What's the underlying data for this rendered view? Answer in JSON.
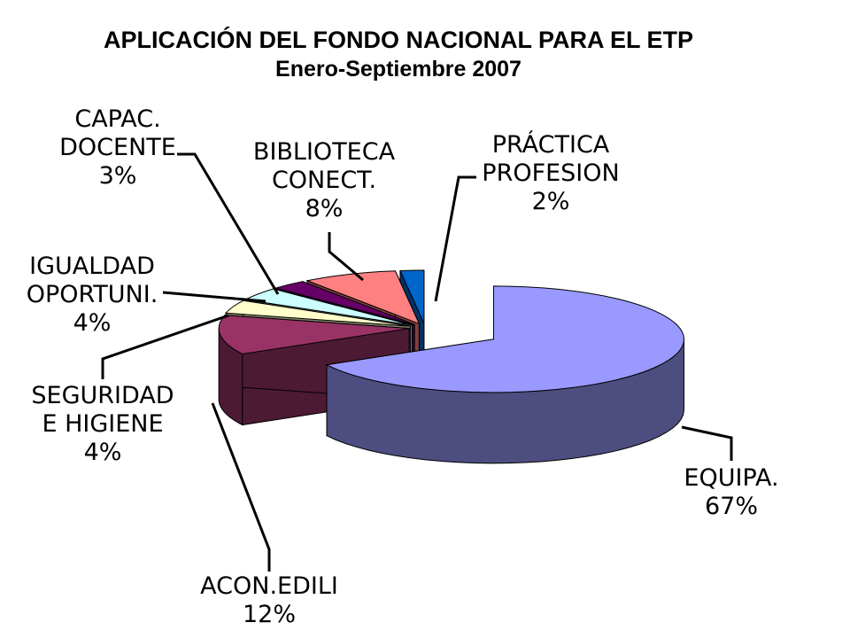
{
  "chart_data": {
    "type": "pie",
    "title": "APLICACIÓN DEL FONDO NACIONAL PARA EL ETP",
    "subtitle": "Enero-Septiembre 2007",
    "slices": [
      {
        "key": "equipa",
        "label_lines": [
          "EQUIPA."
        ],
        "pct_label": "67%",
        "value": 67,
        "color": "#9999ff"
      },
      {
        "key": "acon",
        "label_lines": [
          "ACON.EDILI"
        ],
        "pct_label": "12%",
        "value": 12,
        "color": "#993366"
      },
      {
        "key": "seguridad",
        "label_lines": [
          "SEGURIDAD",
          "E HIGIENE"
        ],
        "pct_label": "4%",
        "value": 4,
        "color": "#ffffcc"
      },
      {
        "key": "igualdad",
        "label_lines": [
          "IGUALDAD",
          "OPORTUNI."
        ],
        "pct_label": "4%",
        "value": 4,
        "color": "#ccffff"
      },
      {
        "key": "capac",
        "label_lines": [
          "CAPAC.",
          "DOCENTE"
        ],
        "pct_label": "3%",
        "value": 3,
        "color": "#660066"
      },
      {
        "key": "biblioteca",
        "label_lines": [
          "BIBLIOTECA",
          "CONECT."
        ],
        "pct_label": "8%",
        "value": 8,
        "color": "#ff8080"
      },
      {
        "key": "practica",
        "label_lines": [
          "PRÁCTICA",
          "PROFESION"
        ],
        "pct_label": "2%",
        "value": 2,
        "color": "#0066cc"
      }
    ],
    "exploded": true,
    "three_d": true,
    "legend": "none"
  }
}
